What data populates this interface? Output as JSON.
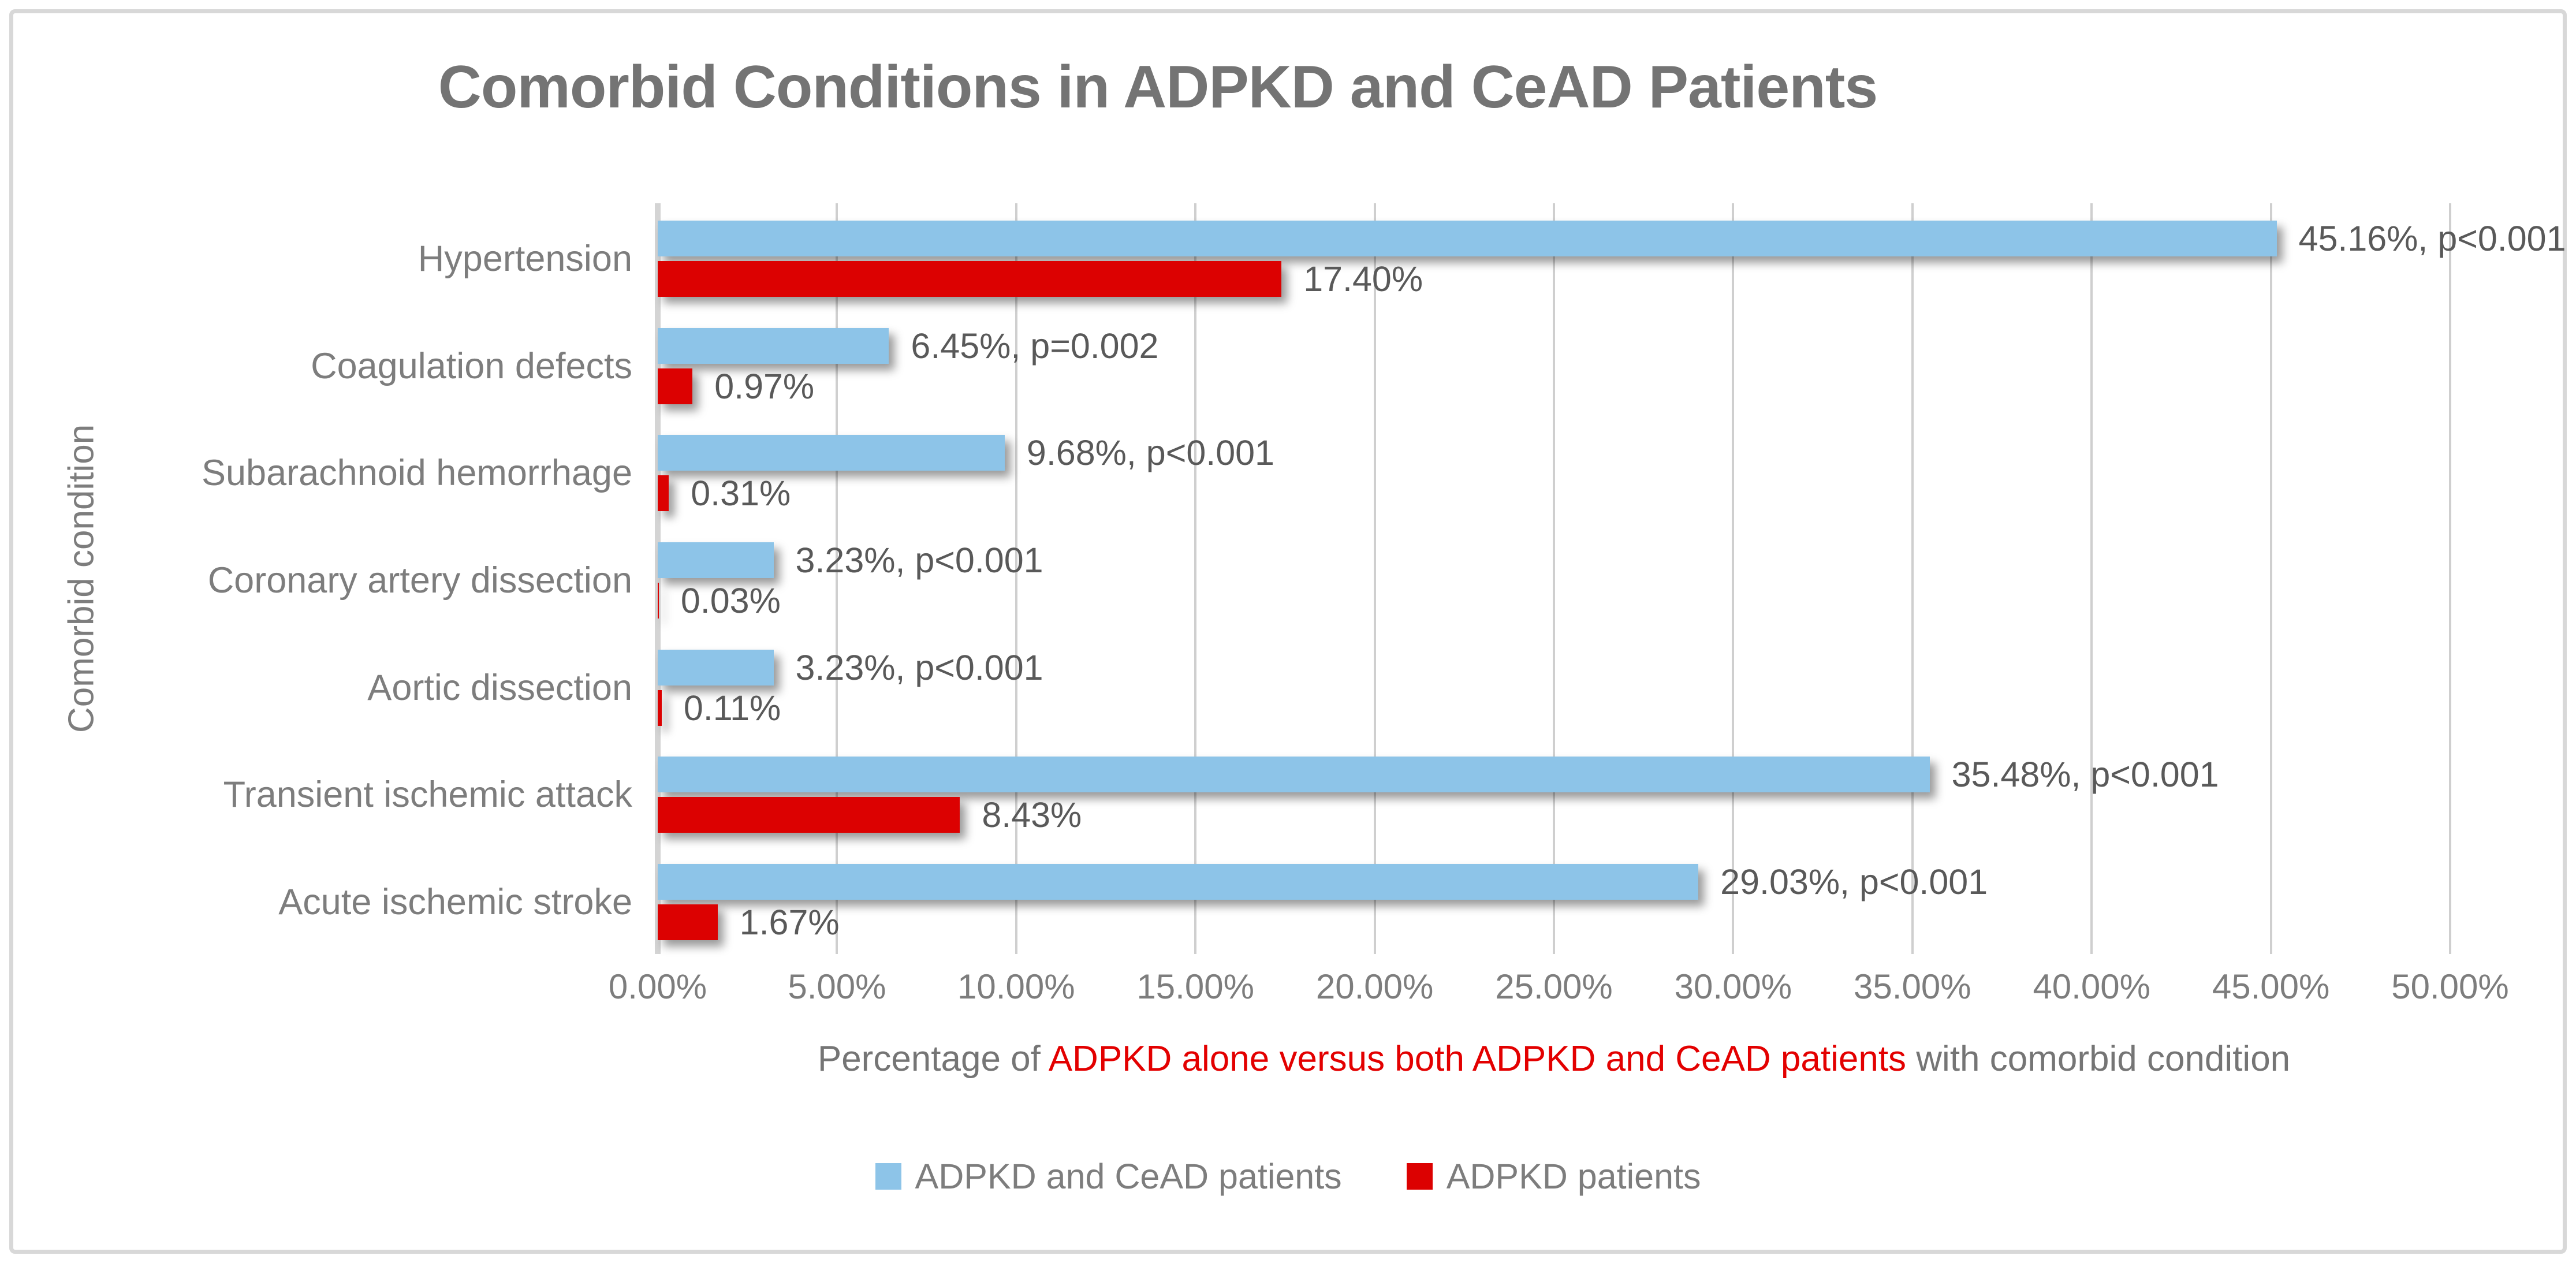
{
  "chart_data": {
    "type": "bar",
    "orientation": "horizontal",
    "title": "Comorbid Conditions in ADPKD and CeAD Patients",
    "categories": [
      "Hypertension",
      "Coagulation defects",
      "Subarachnoid hemorrhage",
      "Coronary artery dissection",
      "Aortic dissection",
      "Transient ischemic attack",
      "Acute ischemic stroke"
    ],
    "series": [
      {
        "name": "ADPKD and CeAD patients",
        "color": "#8DC4E8",
        "values": [
          45.16,
          6.45,
          9.68,
          3.23,
          3.23,
          35.48,
          29.03
        ],
        "labels": [
          "45.16%, p<0.001",
          "6.45%, p=0.002",
          "9.68%, p<0.001",
          "3.23%, p<0.001",
          "3.23%, p<0.001",
          "35.48%, p<0.001",
          "29.03%, p<0.001"
        ]
      },
      {
        "name": "ADPKD patients",
        "color": "#DC0101",
        "values": [
          17.4,
          0.97,
          0.31,
          0.03,
          0.11,
          8.43,
          1.67
        ],
        "labels": [
          "17.40%",
          "0.97%",
          "0.31%",
          "0.03%",
          "0.11%",
          "8.43%",
          "1.67%"
        ]
      }
    ],
    "xlim": [
      0,
      50
    ],
    "x_ticks": [
      "0.00%",
      "5.00%",
      "10.00%",
      "15.00%",
      "20.00%",
      "25.00%",
      "30.00%",
      "35.00%",
      "40.00%",
      "45.00%",
      "50.00%"
    ],
    "xlabel_parts": {
      "prefix": "Percentage of ",
      "highlight": "ADPKD alone versus both ADPKD and CeAD patients",
      "suffix": " with comorbid condition"
    },
    "ylabel": "Comorbid condition",
    "grid": true,
    "legend_position": "bottom",
    "colors": {
      "title_text": "#747474",
      "axis_text": "#7D7D7D",
      "data_label_text": "#595959",
      "xlabel_highlight": "#E30000",
      "gridline": "#CFCFCF",
      "frame_border": "#D8D8D8",
      "background": "#FFFFFF"
    }
  }
}
